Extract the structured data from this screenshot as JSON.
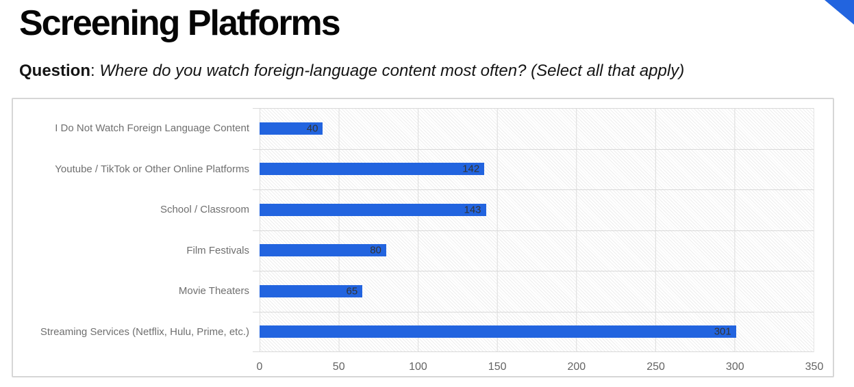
{
  "header": {
    "title": "Screening Platforms",
    "question_label": "Question",
    "question_separator": ": ",
    "question_text": "Where do you watch foreign-language content most often? (Select all that apply)"
  },
  "colors": {
    "accent_blue": "#2264df",
    "category_label_gray": "#6f6f6f",
    "tick_label_gray": "#636363",
    "value_label_dark": "#333333",
    "grid_line_gray": "#dcdcdc",
    "card_border_gray": "#d6d6d6"
  },
  "chart_data": {
    "type": "bar",
    "orientation": "horizontal",
    "title": "",
    "xlabel": "",
    "ylabel": "",
    "categories": [
      "I Do Not Watch Foreign Language Content",
      "Youtube / TikTok or Other Online Platforms",
      "School / Classroom",
      "Film Festivals",
      "Movie Theaters",
      "Streaming Services (Netflix, Hulu, Prime, etc.)"
    ],
    "values": [
      40,
      142,
      143,
      80,
      65,
      301
    ],
    "value_labels": [
      "40",
      "142",
      "143",
      "80",
      "65",
      "301"
    ],
    "x_ticks": [
      "0",
      "50",
      "100",
      "150",
      "200",
      "250",
      "300",
      "350"
    ],
    "xlim": [
      0,
      350
    ],
    "grid": "vertical gridlines every 50 units; horizontal separators between category bands; hatched plot background",
    "legend_position": "none",
    "bar_label_position": "inside-end"
  }
}
